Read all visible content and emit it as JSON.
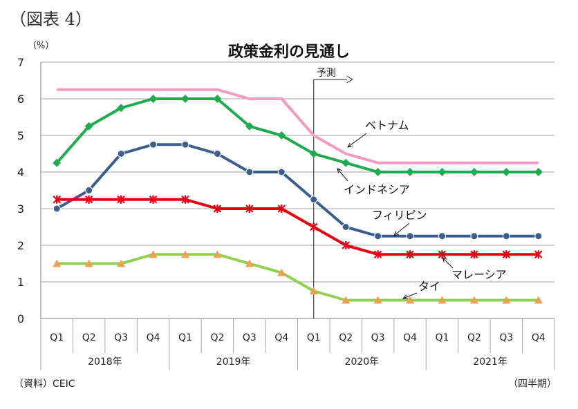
{
  "figure_label": "（図表 4）",
  "source_note": "（資料）CEIC",
  "period_note": "（四半期）",
  "chart_data": {
    "type": "line",
    "title": "政策金利の見通し",
    "ylabel": "（%）",
    "xlabel": "",
    "ylim": [
      0,
      7
    ],
    "yticks": [
      "0",
      "1",
      "2",
      "3",
      "4",
      "5",
      "6",
      "7"
    ],
    "grid": true,
    "categories": [
      "Q1",
      "Q2",
      "Q3",
      "Q4",
      "Q1",
      "Q2",
      "Q3",
      "Q4",
      "Q1",
      "Q2",
      "Q3",
      "Q4",
      "Q1",
      "Q2",
      "Q3",
      "Q4"
    ],
    "years": [
      "2018年",
      "2019年",
      "2020年",
      "2021年"
    ],
    "forecast_label": "予測",
    "forecast_start_index": 8.5,
    "series": [
      {
        "name": "ベトナム",
        "color": "#f49ac1",
        "marker": "none",
        "values": [
          6.25,
          6.25,
          6.25,
          6.25,
          6.25,
          6.25,
          6.0,
          6.0,
          5.0,
          4.5,
          4.25,
          4.25,
          4.25,
          4.25,
          4.25,
          4.25
        ]
      },
      {
        "name": "インドネシア",
        "color": "#1faa4d",
        "marker": "diamond",
        "values": [
          4.25,
          5.25,
          5.75,
          6.0,
          6.0,
          6.0,
          5.25,
          5.0,
          4.5,
          4.25,
          4.0,
          4.0,
          4.0,
          4.0,
          4.0,
          4.0
        ]
      },
      {
        "name": "フィリピン",
        "color": "#3a5f8f",
        "marker": "circle",
        "values": [
          3.0,
          3.5,
          4.5,
          4.75,
          4.75,
          4.5,
          4.0,
          4.0,
          3.25,
          2.5,
          2.25,
          2.25,
          2.25,
          2.25,
          2.25,
          2.25
        ]
      },
      {
        "name": "マレーシア",
        "color": "#e60012",
        "marker": "x",
        "values": [
          3.25,
          3.25,
          3.25,
          3.25,
          3.25,
          3.0,
          3.0,
          3.0,
          2.5,
          2.0,
          1.75,
          1.75,
          1.75,
          1.75,
          1.75,
          1.75
        ]
      },
      {
        "name": "タイ",
        "color": "#92d050",
        "marker": "triangle",
        "marker_color": "#f0a050",
        "values": [
          1.5,
          1.5,
          1.5,
          1.75,
          1.75,
          1.75,
          1.5,
          1.25,
          0.75,
          0.5,
          0.5,
          0.5,
          0.5,
          0.5,
          0.5,
          0.5
        ]
      }
    ]
  }
}
